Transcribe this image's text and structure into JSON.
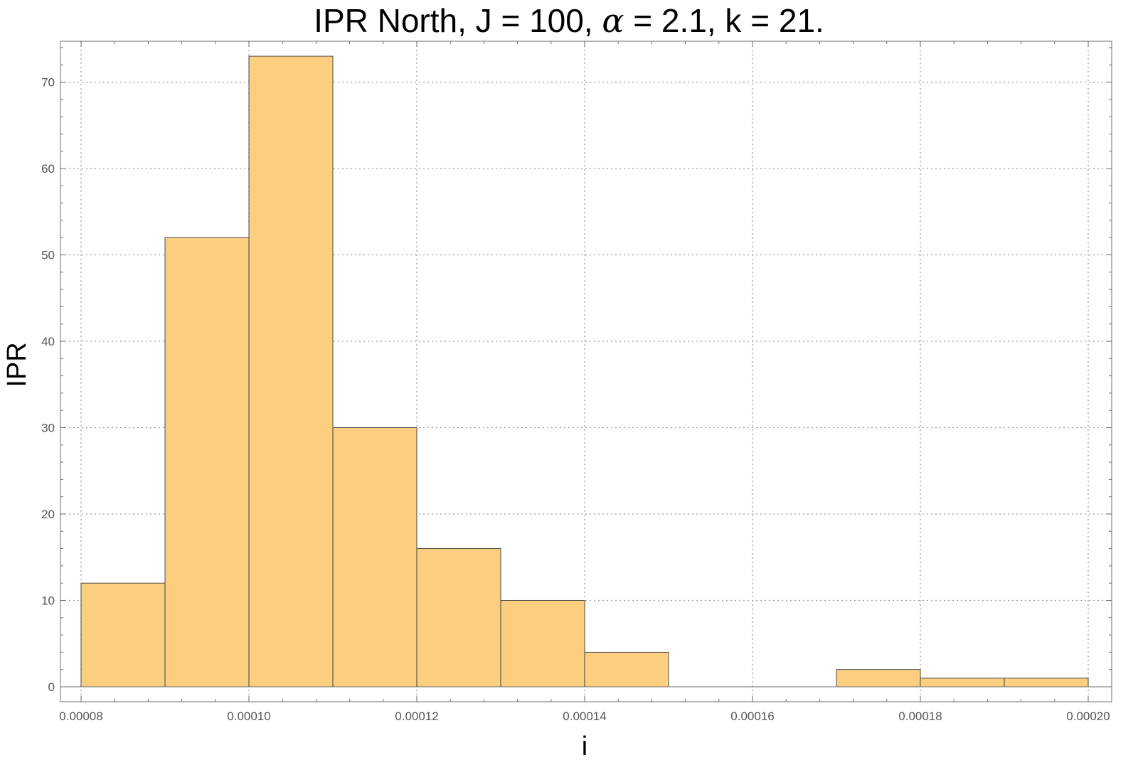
{
  "chart_data": {
    "type": "bar",
    "title_parts": [
      "IPR North, J = 100, ",
      "α",
      " = 2.1, k = 21."
    ],
    "xlabel": "i",
    "ylabel": "IPR",
    "xlim": [
      8e-05,
      0.0002
    ],
    "ylim": [
      0,
      77
    ],
    "x_ticks": [
      8e-05,
      0.0001,
      0.00012,
      0.00014,
      0.00016,
      0.00018,
      0.0002
    ],
    "x_tick_labels": [
      "0.00008",
      "0.00010",
      "0.00012",
      "0.00014",
      "0.00016",
      "0.00018",
      "0.00020"
    ],
    "y_ticks": [
      0,
      10,
      20,
      30,
      40,
      50,
      60,
      70
    ],
    "y_tick_labels": [
      "0",
      "10",
      "20",
      "30",
      "40",
      "50",
      "60",
      "70"
    ],
    "grid": true,
    "bar_color": "#FCCF80",
    "bins": [
      {
        "x0": 8e-05,
        "x1": 9e-05,
        "value": 12
      },
      {
        "x0": 9e-05,
        "x1": 0.0001,
        "value": 52
      },
      {
        "x0": 0.0001,
        "x1": 0.00011,
        "value": 73
      },
      {
        "x0": 0.00011,
        "x1": 0.00012,
        "value": 30
      },
      {
        "x0": 0.00012,
        "x1": 0.00013,
        "value": 16
      },
      {
        "x0": 0.00013,
        "x1": 0.00014,
        "value": 10
      },
      {
        "x0": 0.00014,
        "x1": 0.00015,
        "value": 4
      },
      {
        "x0": 0.00017,
        "x1": 0.00018,
        "value": 2
      },
      {
        "x0": 0.00018,
        "x1": 0.00019,
        "value": 1
      },
      {
        "x0": 0.00019,
        "x1": 0.0002,
        "value": 1
      }
    ]
  }
}
